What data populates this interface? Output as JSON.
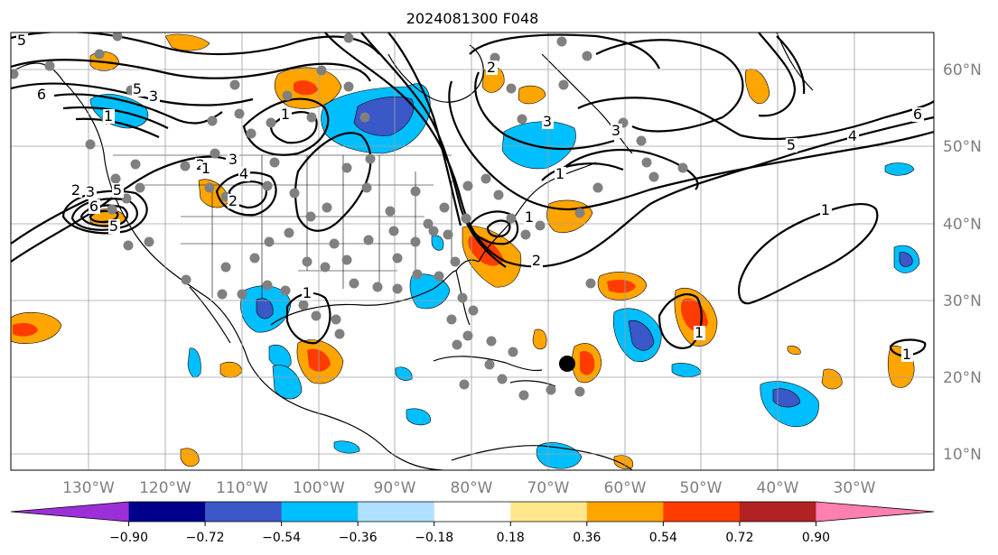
{
  "title": "2024081300 F048",
  "map": {
    "lon_labels": [
      "130°W",
      "120°W",
      "110°W",
      "100°W",
      "90°W",
      "80°W",
      "70°W",
      "60°W",
      "50°W",
      "40°W",
      "30°W"
    ],
    "lat_labels": [
      "60°N",
      "50°N",
      "40°N",
      "30°N",
      "20°N",
      "10°N"
    ],
    "contour_labels": [
      "5",
      "6",
      "5",
      "3",
      "1",
      "2",
      "3",
      "5",
      "2",
      "3",
      "4",
      "6",
      "5",
      "1",
      "2",
      "1",
      "3",
      "1",
      "2",
      "3",
      "1",
      "6",
      "5",
      "4",
      "2",
      "1",
      "1",
      "1",
      "1"
    ]
  },
  "colorbar": {
    "ticks": [
      "−0.90",
      "−0.72",
      "−0.54",
      "−0.36",
      "−0.18",
      "0.18",
      "0.36",
      "0.54",
      "0.72",
      "0.90"
    ],
    "colors": [
      "#9b30d9",
      "#00008b",
      "#3b58c8",
      "#00bfff",
      "#b0e0ff",
      "#ffffff",
      "#ffe88c",
      "#ffa500",
      "#ff3c00",
      "#b22222",
      "#ff80b0"
    ]
  }
}
